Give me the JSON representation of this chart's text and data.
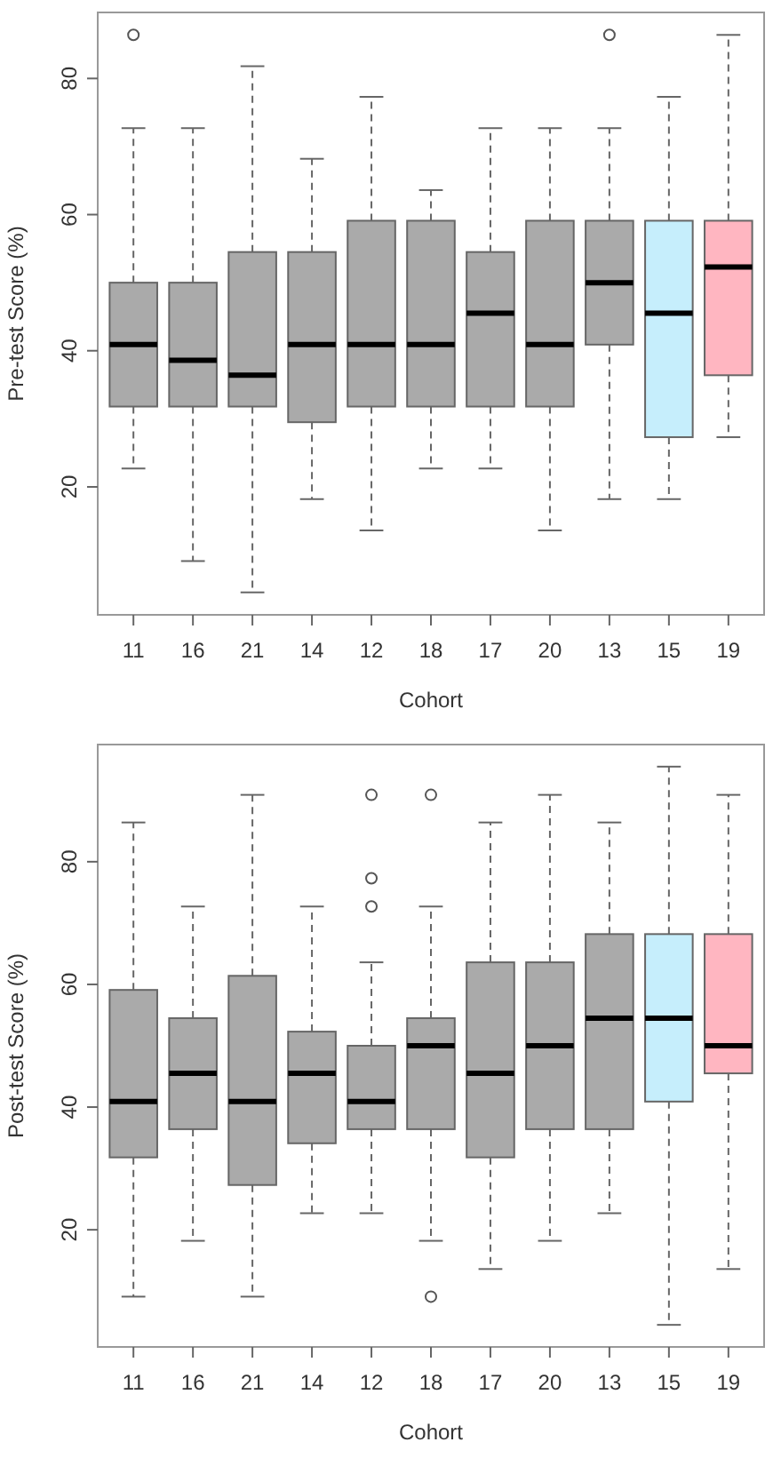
{
  "chart_data": [
    {
      "type": "box",
      "xlabel": "Cohort",
      "ylabel": "Pre-test Score (%)",
      "categories": [
        "11",
        "16",
        "21",
        "14",
        "12",
        "18",
        "17",
        "20",
        "13",
        "15",
        "19"
      ],
      "colors": [
        "#aaaaaa",
        "#aaaaaa",
        "#aaaaaa",
        "#aaaaaa",
        "#aaaaaa",
        "#aaaaaa",
        "#aaaaaa",
        "#aaaaaa",
        "#aaaaaa",
        "#c6eefc",
        "#ffb6c1"
      ],
      "ylim": [
        1.2,
        89.7
      ],
      "yticks": [
        20,
        40,
        60,
        80
      ],
      "boxes": [
        {
          "low": 22.7,
          "q1": 31.8,
          "median": 40.9,
          "q3": 50,
          "high": 72.7,
          "outliers": [
            86.4
          ]
        },
        {
          "low": 9.1,
          "q1": 31.8,
          "median": 38.6,
          "q3": 50,
          "high": 72.7
        },
        {
          "low": 4.5,
          "q1": 31.8,
          "median": 36.4,
          "q3": 54.5,
          "high": 81.8
        },
        {
          "low": 18.2,
          "q1": 29.5,
          "median": 40.9,
          "q3": 54.5,
          "high": 68.2
        },
        {
          "low": 13.6,
          "q1": 31.8,
          "median": 40.9,
          "q3": 59.1,
          "high": 77.3
        },
        {
          "low": 22.7,
          "q1": 31.8,
          "median": 40.9,
          "q3": 59.1,
          "high": 63.6
        },
        {
          "low": 22.7,
          "q1": 31.8,
          "median": 45.5,
          "q3": 54.5,
          "high": 72.7
        },
        {
          "low": 13.6,
          "q1": 31.8,
          "median": 40.9,
          "q3": 59.1,
          "high": 72.7
        },
        {
          "low": 18.2,
          "q1": 40.9,
          "median": 50,
          "q3": 59.1,
          "high": 72.7,
          "outliers": [
            86.4
          ]
        },
        {
          "low": 18.2,
          "q1": 27.3,
          "median": 45.5,
          "q3": 59.1,
          "high": 77.3
        },
        {
          "low": 27.3,
          "q1": 36.4,
          "median": 52.3,
          "q3": 59.1,
          "high": 86.4
        }
      ]
    },
    {
      "type": "box",
      "xlabel": "Cohort",
      "ylabel": "Post-test Score (%)",
      "categories": [
        "11",
        "16",
        "21",
        "14",
        "12",
        "18",
        "17",
        "20",
        "13",
        "15",
        "19"
      ],
      "colors": [
        "#aaaaaa",
        "#aaaaaa",
        "#aaaaaa",
        "#aaaaaa",
        "#aaaaaa",
        "#aaaaaa",
        "#aaaaaa",
        "#aaaaaa",
        "#aaaaaa",
        "#c6eefc",
        "#ffb6c1"
      ],
      "ylim": [
        0.9,
        99.1
      ],
      "yticks": [
        20,
        40,
        60,
        80
      ],
      "boxes": [
        {
          "low": 9.1,
          "q1": 31.8,
          "median": 40.9,
          "q3": 59.1,
          "high": 86.4
        },
        {
          "low": 18.2,
          "q1": 36.4,
          "median": 45.5,
          "q3": 54.5,
          "high": 72.7
        },
        {
          "low": 9.1,
          "q1": 27.3,
          "median": 40.9,
          "q3": 61.4,
          "high": 90.9
        },
        {
          "low": 22.7,
          "q1": 34.1,
          "median": 45.5,
          "q3": 52.3,
          "high": 72.7
        },
        {
          "low": 22.7,
          "q1": 36.4,
          "median": 40.9,
          "q3": 50,
          "high": 63.6,
          "outliers": [
            72.7,
            77.3,
            90.9
          ]
        },
        {
          "low": 18.2,
          "q1": 36.4,
          "median": 50,
          "q3": 54.5,
          "high": 72.7,
          "outliers": [
            9.1,
            90.9
          ]
        },
        {
          "low": 13.6,
          "q1": 31.8,
          "median": 45.5,
          "q3": 63.6,
          "high": 86.4
        },
        {
          "low": 18.2,
          "q1": 36.4,
          "median": 50,
          "q3": 63.6,
          "high": 90.9
        },
        {
          "low": 22.7,
          "q1": 36.4,
          "median": 54.5,
          "q3": 68.2,
          "high": 86.4
        },
        {
          "low": 4.5,
          "q1": 40.9,
          "median": 54.5,
          "q3": 68.2,
          "high": 95.5
        },
        {
          "low": 13.6,
          "q1": 45.5,
          "median": 50,
          "q3": 68.2,
          "high": 90.9
        }
      ]
    }
  ]
}
